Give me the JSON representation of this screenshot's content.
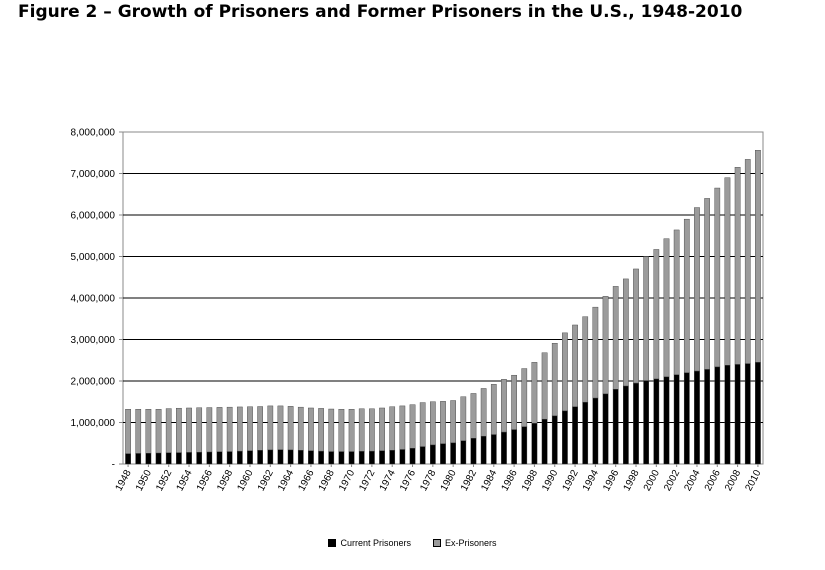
{
  "title": "Figure 2 – Growth of Prisoners and Former Prisoners in the U.S., 1948-2010",
  "colors": {
    "current": "#000000",
    "ex": "#9b9b9b",
    "bar_edge": "#3a3a3a"
  },
  "chart_data": {
    "type": "bar",
    "stacked": true,
    "title": "",
    "xlabel": "",
    "ylabel": "",
    "ylim": [
      0,
      8000000
    ],
    "yticks": [
      0,
      1000000,
      2000000,
      3000000,
      4000000,
      5000000,
      6000000,
      7000000,
      8000000
    ],
    "ytick_labels": [
      "-",
      "1,000,000",
      "2,000,000",
      "3,000,000",
      "4,000,000",
      "5,000,000",
      "6,000,000",
      "7,000,000",
      "8,000,000"
    ],
    "grid": "horizontal",
    "legend_position": "bottom",
    "categories": [
      "1948",
      "1949",
      "1950",
      "1951",
      "1952",
      "1953",
      "1954",
      "1955",
      "1956",
      "1957",
      "1958",
      "1959",
      "1960",
      "1961",
      "1962",
      "1963",
      "1964",
      "1965",
      "1966",
      "1967",
      "1968",
      "1969",
      "1970",
      "1971",
      "1972",
      "1973",
      "1974",
      "1975",
      "1976",
      "1977",
      "1978",
      "1979",
      "1980",
      "1981",
      "1982",
      "1983",
      "1984",
      "1985",
      "1986",
      "1987",
      "1988",
      "1989",
      "1990",
      "1991",
      "1992",
      "1993",
      "1994",
      "1995",
      "1996",
      "1997",
      "1998",
      "1999",
      "2000",
      "2001",
      "2002",
      "2003",
      "2004",
      "2005",
      "2006",
      "2007",
      "2008",
      "2009",
      "2010"
    ],
    "x_tick_labels": [
      "1948",
      "1950",
      "1952",
      "1954",
      "1956",
      "1958",
      "1960",
      "1962",
      "1964",
      "1966",
      "1968",
      "1970",
      "1972",
      "1974",
      "1976",
      "1978",
      "1980",
      "1982",
      "1984",
      "1986",
      "1988",
      "1990",
      "1992",
      "1994",
      "1996",
      "1998",
      "2000",
      "2002",
      "2004",
      "2006",
      "2008",
      "2010"
    ],
    "series": [
      {
        "name": "Current Prisoners",
        "values": [
          250000,
          255000,
          260000,
          265000,
          270000,
          275000,
          280000,
          285000,
          290000,
          295000,
          300000,
          310000,
          320000,
          330000,
          340000,
          345000,
          340000,
          330000,
          320000,
          310000,
          300000,
          300000,
          300000,
          305000,
          310000,
          320000,
          330000,
          350000,
          380000,
          420000,
          460000,
          490000,
          510000,
          560000,
          620000,
          670000,
          710000,
          770000,
          830000,
          900000,
          980000,
          1080000,
          1160000,
          1280000,
          1380000,
          1490000,
          1590000,
          1690000,
          1800000,
          1880000,
          1950000,
          2010000,
          2050000,
          2100000,
          2150000,
          2200000,
          2240000,
          2280000,
          2340000,
          2380000,
          2400000,
          2420000,
          2450000
        ]
      },
      {
        "name": "Ex-Prisoners",
        "values": [
          1070000,
          1065000,
          1060000,
          1055000,
          1065000,
          1070000,
          1070000,
          1070000,
          1070000,
          1070000,
          1070000,
          1065000,
          1060000,
          1055000,
          1060000,
          1055000,
          1050000,
          1040000,
          1030000,
          1030000,
          1025000,
          1020000,
          1020000,
          1025000,
          1020000,
          1030000,
          1050000,
          1050000,
          1050000,
          1060000,
          1040000,
          1020000,
          1020000,
          1060000,
          1080000,
          1150000,
          1210000,
          1270000,
          1310000,
          1400000,
          1470000,
          1600000,
          1750000,
          1880000,
          1970000,
          2060000,
          2190000,
          2350000,
          2480000,
          2580000,
          2750000,
          2990000,
          3120000,
          3330000,
          3490000,
          3700000,
          3940000,
          4120000,
          4310000,
          4520000,
          4750000,
          4920000,
          5110000
        ]
      }
    ]
  }
}
